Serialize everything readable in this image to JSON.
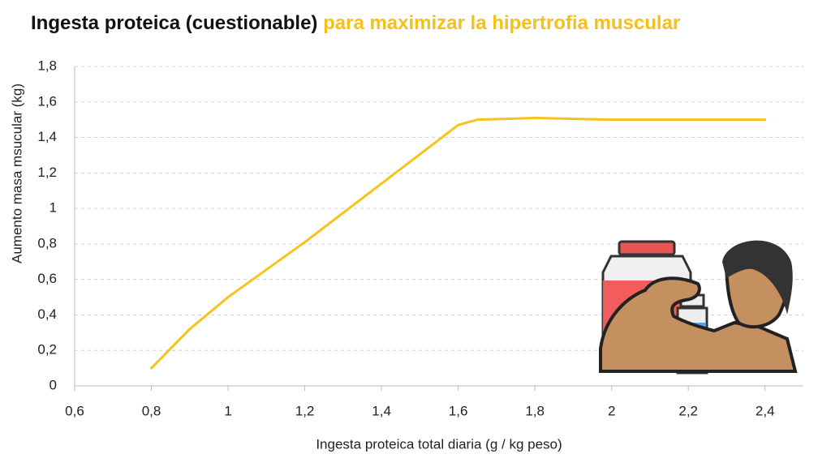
{
  "chart_data": {
    "type": "line",
    "title": "Ingesta proteica (cuestionable)",
    "title_highlight": "para maximizar la hipertrofia muscular",
    "x_label": "Ingesta proteica total diaria (g / kg peso)",
    "y_label": "Aumento masa msucular (kg)",
    "x": [
      0.8,
      0.9,
      1.0,
      1.2,
      1.4,
      1.6,
      1.65,
      1.8,
      2.0,
      2.2,
      2.4
    ],
    "series": [
      {
        "name": "Aumento masa muscular",
        "color": "#f7c31a",
        "values": [
          0.1,
          0.32,
          0.5,
          0.81,
          1.14,
          1.47,
          1.5,
          1.51,
          1.5,
          1.5,
          1.5
        ]
      }
    ],
    "xlim": [
      0.6,
      2.5
    ],
    "xticks": [
      {
        "value": 0.6,
        "label": "0,6"
      },
      {
        "value": 0.8,
        "label": "0,8"
      },
      1,
      {
        "value": 1.2,
        "label": "1,2"
      },
      {
        "value": 1.4,
        "label": "1,4"
      },
      {
        "value": 1.6,
        "label": "1,6"
      },
      {
        "value": 1.8,
        "label": "1,8"
      },
      2,
      {
        "value": 2.2,
        "label": "2,2"
      },
      {
        "value": 2.4,
        "label": "2,4"
      }
    ],
    "ylim": [
      0,
      1.8
    ],
    "yticks": [
      0,
      {
        "value": 0.2,
        "label": "0,2"
      },
      {
        "value": 0.4,
        "label": "0,4"
      },
      {
        "value": 0.6,
        "label": "0,6"
      },
      {
        "value": 0.8,
        "label": "0,8"
      },
      1,
      {
        "value": 1.2,
        "label": "1,2"
      },
      {
        "value": 1.4,
        "label": "1,4"
      },
      {
        "value": 1.6,
        "label": "1,6"
      },
      {
        "value": 1.8,
        "label": "1,8"
      }
    ],
    "grid": true
  }
}
